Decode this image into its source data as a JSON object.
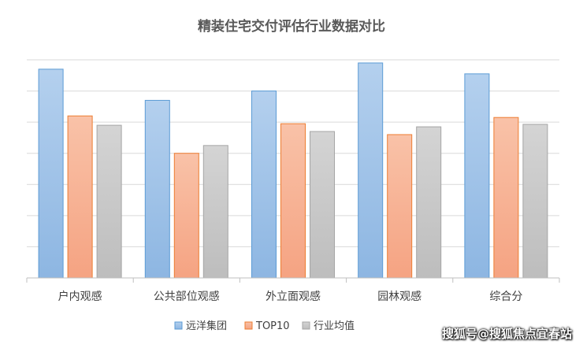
{
  "chart_data": {
    "type": "bar",
    "title": "精装住宅交付评估行业数据对比",
    "categories": [
      "户内观感",
      "公共部位观感",
      "外立面观感",
      "园林观感",
      "综合分"
    ],
    "series": [
      {
        "name": "远洋集团",
        "values": [
          6.7,
          5.7,
          6.0,
          6.9,
          6.55
        ],
        "color": "#9dc3e6"
      },
      {
        "name": "TOP10",
        "values": [
          5.2,
          4.0,
          4.95,
          4.6,
          5.15
        ],
        "color": "#f8b69a"
      },
      {
        "name": "行业均值",
        "values": [
          4.9,
          4.25,
          4.7,
          4.85,
          4.93
        ],
        "color": "#c9c9c9"
      }
    ],
    "ylim": [
      0,
      7
    ],
    "grid": true,
    "legend": "bottom",
    "xlabel": "",
    "ylabel": ""
  },
  "watermark": "搜狐号@搜狐焦点宜春站"
}
